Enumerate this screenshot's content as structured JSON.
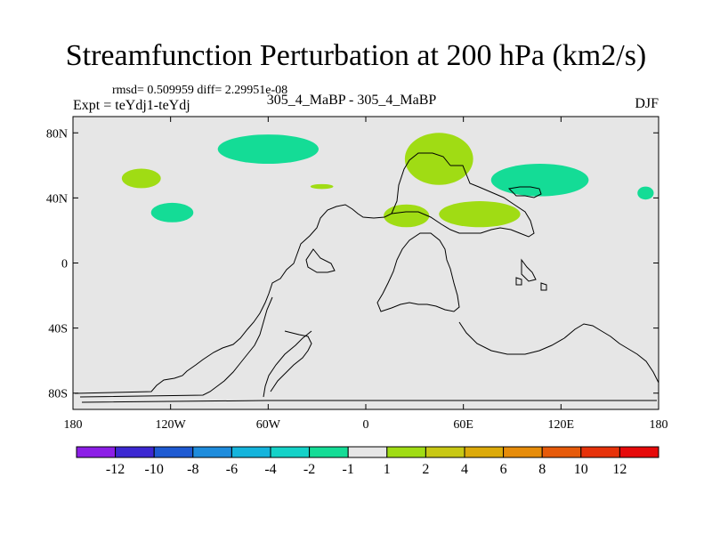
{
  "chart_data": {
    "type": "heatmap",
    "title": "Streamfunction Perturbation at 200 hPa (km2/s)",
    "stats_text": "rmsd= 0.509959 diff= 2.29951e-08",
    "left_label": "Expt = teYdj1-teYdj",
    "center_label": "305_4_MaBP - 305_4_MaBP",
    "right_label": "DJF",
    "x_ticks": [
      "180",
      "120W",
      "60W",
      "0",
      "60E",
      "120E",
      "180"
    ],
    "x_tick_values": [
      -180,
      -120,
      -60,
      0,
      60,
      120,
      180
    ],
    "y_ticks": [
      "80N",
      "40N",
      "0",
      "40S",
      "80S"
    ],
    "y_tick_values": [
      80,
      40,
      0,
      -40,
      -80
    ],
    "xlim": [
      -180,
      180
    ],
    "ylim": [
      -90,
      90
    ],
    "colorbar": {
      "labels": [
        "-12",
        "-10",
        "-8",
        "-6",
        "-4",
        "-2",
        "-1",
        "1",
        "2",
        "4",
        "6",
        "8",
        "10",
        "12"
      ],
      "colors": [
        "#8c1ee6",
        "#3c28d2",
        "#1e5ad2",
        "#1e8cdc",
        "#14b4dc",
        "#14d2c8",
        "#14dc96",
        "#e6e6e6",
        "#a0dc14",
        "#c8c814",
        "#dcaa0a",
        "#e68c0a",
        "#e65a0a",
        "#e6320a",
        "#e60a0a"
      ]
    },
    "anomalies": [
      {
        "lon": -60,
        "lat": 70,
        "rlon": 31,
        "rlat": 9,
        "level": "-2 to -1",
        "color": "#14dc96"
      },
      {
        "lon": -138,
        "lat": 52,
        "rlon": 12,
        "rlat": 6,
        "level": "1 to 2",
        "color": "#a0dc14"
      },
      {
        "lon": -119,
        "lat": 31,
        "rlon": 13,
        "rlat": 6,
        "level": "-2 to -1",
        "color": "#14dc96"
      },
      {
        "lon": -27,
        "lat": 47,
        "rlon": 7,
        "rlat": 1.5,
        "level": "1 to 2",
        "color": "#a0dc14"
      },
      {
        "lon": 45,
        "lat": 64,
        "rlon": 21,
        "rlat": 16,
        "level": "1 to 2",
        "color": "#a0dc14"
      },
      {
        "lon": 25,
        "lat": 29,
        "rlon": 14,
        "rlat": 7,
        "level": "1 to 2",
        "color": "#a0dc14"
      },
      {
        "lon": 70,
        "lat": 30,
        "rlon": 25,
        "rlat": 8,
        "level": "1 to 2",
        "color": "#a0dc14"
      },
      {
        "lon": 107,
        "lat": 51,
        "rlon": 30,
        "rlat": 10,
        "level": "-2 to -1",
        "color": "#14dc96"
      },
      {
        "lon": 172,
        "lat": 43,
        "rlon": 5,
        "rlat": 4,
        "level": "-2 to -1",
        "color": "#14dc96"
      }
    ]
  }
}
